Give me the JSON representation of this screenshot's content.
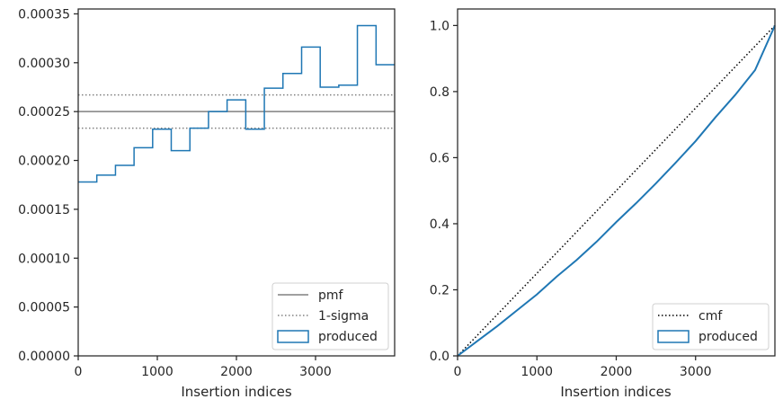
{
  "chart_data": [
    {
      "type": "line",
      "xlabel": "Insertion indices",
      "ylabel": "",
      "xlim": [
        0,
        4000
      ],
      "ylim": [
        0,
        0.000355
      ],
      "xticks": [
        0,
        1000,
        2000,
        3000
      ],
      "xtick_labels": [
        "0",
        "1000",
        "2000",
        "3000"
      ],
      "yticks": [
        0,
        5e-05,
        0.0001,
        0.00015,
        0.0002,
        0.00025,
        0.0003,
        0.00035
      ],
      "ytick_labels": [
        "0.00000",
        "0.00005",
        "0.00010",
        "0.00015",
        "0.00020",
        "0.00025",
        "0.00030",
        "0.00035"
      ],
      "grid": false,
      "legend_position": "bottom-right",
      "lines": [
        {
          "name": "pmf",
          "style": "solid",
          "color": "#808080",
          "y": 0.00025
        },
        {
          "name": "1-sigma",
          "style": "dotted",
          "color": "#808080",
          "y": 0.000267
        },
        {
          "name": "",
          "style": "dotted",
          "color": "#808080",
          "y": 0.000233
        }
      ],
      "histogram": {
        "name": "produced",
        "color": "#1f77b4",
        "bin_edges": [
          0,
          235,
          471,
          706,
          941,
          1176,
          1412,
          1647,
          1882,
          2118,
          2353,
          2588,
          2824,
          3059,
          3294,
          3529,
          3765,
          4000
        ],
        "values": [
          0.000178,
          0.000185,
          0.000195,
          0.000213,
          0.000232,
          0.00021,
          0.000233,
          0.00025,
          0.000262,
          0.000232,
          0.000274,
          0.000289,
          0.000316,
          0.000275,
          0.000277,
          0.000338,
          0.000298
        ]
      },
      "legend": [
        "pmf",
        "1-sigma",
        "produced"
      ]
    },
    {
      "type": "line",
      "xlabel": "Insertion indices",
      "ylabel": "",
      "xlim": [
        0,
        4000
      ],
      "ylim": [
        0,
        1.05
      ],
      "xticks": [
        0,
        1000,
        2000,
        3000
      ],
      "xtick_labels": [
        "0",
        "1000",
        "2000",
        "3000"
      ],
      "yticks": [
        0,
        0.2,
        0.4,
        0.6,
        0.8,
        1.0
      ],
      "ytick_labels": [
        "0.0",
        "0.2",
        "0.4",
        "0.6",
        "0.8",
        "1.0"
      ],
      "grid": false,
      "legend_position": "bottom-right",
      "series": [
        {
          "name": "cmf",
          "style": "dotted",
          "color": "#000000",
          "x": [
            0,
            4000
          ],
          "y": [
            0,
            1.0
          ]
        },
        {
          "name": "produced",
          "style": "solid",
          "color": "#1f77b4",
          "x": [
            0,
            250,
            500,
            750,
            1000,
            1250,
            1500,
            1750,
            2000,
            2250,
            2500,
            2750,
            3000,
            3250,
            3500,
            3750,
            4000
          ],
          "y": [
            0,
            0.045,
            0.09,
            0.138,
            0.186,
            0.24,
            0.29,
            0.345,
            0.405,
            0.462,
            0.522,
            0.585,
            0.65,
            0.722,
            0.79,
            0.865,
            1.0
          ]
        }
      ],
      "legend": [
        "cmf",
        "produced"
      ]
    }
  ]
}
